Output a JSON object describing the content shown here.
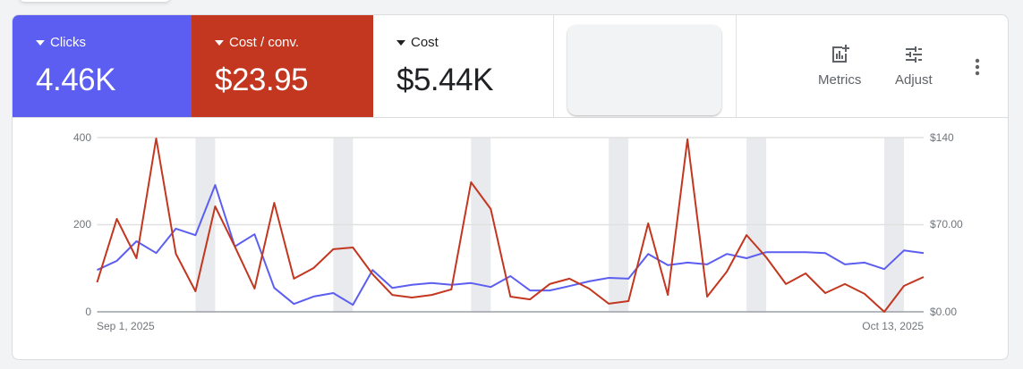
{
  "scorecards": [
    {
      "label": "Clicks",
      "value": "4.46K",
      "color": "#5B5EF0"
    },
    {
      "label": "Cost / conv.",
      "value": "$23.95",
      "color": "#C3361F"
    },
    {
      "label": "Cost",
      "value": "$5.44K"
    }
  ],
  "toolbar": {
    "metrics_label": "Metrics",
    "adjust_label": "Adjust"
  },
  "chart_data": {
    "type": "line",
    "x_start_label": "Sep 1, 2025",
    "x_end_label": "Oct 13, 2025",
    "days": 43,
    "weekend_start_indices": [
      5,
      12,
      19,
      26,
      33,
      40
    ],
    "left_axis": {
      "ticks": [
        "0",
        "200",
        "400"
      ],
      "ylim": [
        0,
        400
      ]
    },
    "right_axis": {
      "ticks": [
        "$0.00",
        "$70.00",
        "$140"
      ],
      "ylim": [
        0,
        140
      ]
    },
    "series": [
      {
        "name": "Clicks",
        "axis": "left",
        "color": "#5B5EF0",
        "values": [
          96,
          117,
          162,
          135,
          191,
          176,
          291,
          150,
          178,
          55,
          18,
          35,
          43,
          16,
          96,
          55,
          62,
          66,
          62,
          66,
          57,
          82,
          49,
          49,
          59,
          70,
          78,
          76,
          133,
          107,
          113,
          109,
          133,
          123,
          137,
          137,
          137,
          135,
          109,
          113,
          98,
          141,
          135
        ]
      },
      {
        "name": "Cost / conv.",
        "axis": "right",
        "color": "#C3361F",
        "values": [
          23.7,
          74.7,
          43.1,
          139.3,
          46.7,
          16.5,
          84.7,
          52.4,
          18.7,
          87.6,
          26.6,
          35.2,
          50.3,
          51.7,
          30.2,
          13.6,
          11.5,
          13.6,
          18,
          104.1,
          82.6,
          12.2,
          10,
          22.3,
          26.6,
          18.7,
          6.5,
          8.6,
          71.1,
          13.6,
          138.6,
          12.2,
          32.3,
          61.7,
          43.8,
          22.3,
          30.9,
          15.1,
          22.3,
          14.4,
          0,
          20.8,
          28
        ]
      }
    ]
  }
}
